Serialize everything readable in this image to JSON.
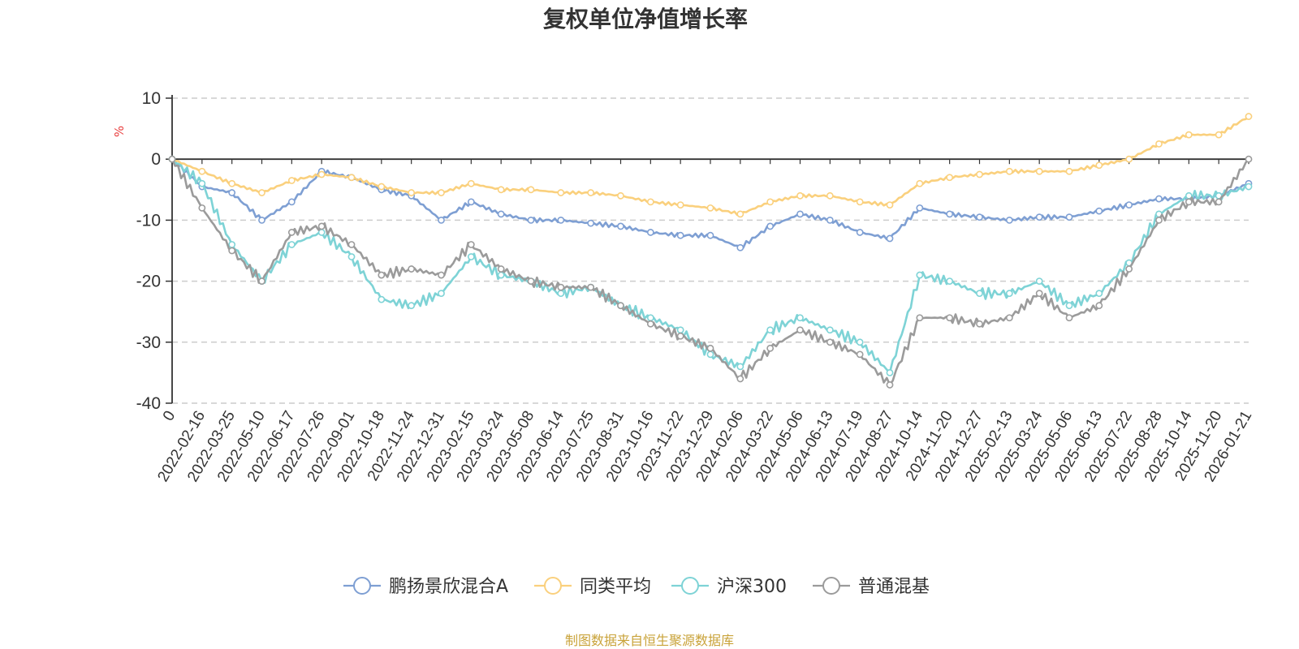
{
  "chart_data": {
    "type": "line",
    "title": "复权单位净值增长率",
    "ylabel": "%",
    "xlabel": "",
    "ylim": [
      -40,
      10
    ],
    "yticks": [
      10,
      0,
      -10,
      -20,
      -30,
      -40
    ],
    "grid": true,
    "legend_position": "bottom",
    "categories": [
      "0",
      "2022-02-16",
      "2022-03-25",
      "2022-05-10",
      "2022-06-17",
      "2022-07-26",
      "2022-09-01",
      "2022-10-18",
      "2022-11-24",
      "2022-12-31",
      "2023-02-15",
      "2023-03-24",
      "2023-05-08",
      "2023-06-14",
      "2023-07-25",
      "2023-08-31",
      "2023-10-16",
      "2023-11-22",
      "2023-12-29",
      "2024-02-06",
      "2024-03-22",
      "2024-05-06",
      "2024-06-13",
      "2024-07-19",
      "2024-08-27",
      "2024-10-14",
      "2024-11-20",
      "2024-12-27",
      "2025-02-13",
      "2025-03-24",
      "2025-05-06",
      "2025-06-13",
      "2025-07-22",
      "2025-08-28",
      "2025-10-14",
      "2025-11-20",
      "2026-01-21"
    ],
    "series": [
      {
        "name": "鹏扬景欣混合A",
        "color": "#7e9fd3",
        "values": [
          0,
          -4.5,
          -5.5,
          -10,
          -7,
          -2,
          -3,
          -5,
          -6,
          -10,
          -7,
          -9,
          -10,
          -10,
          -10.5,
          -11,
          -12,
          -12.5,
          -12.5,
          -14.5,
          -11,
          -9,
          -10,
          -12,
          -13,
          -8,
          -9,
          -9.5,
          -10,
          -9.5,
          -9.5,
          -8.5,
          -7.5,
          -6.5,
          -6.5,
          -6,
          -4
        ]
      },
      {
        "name": "同类平均",
        "color": "#fad07d",
        "values": [
          0,
          -2,
          -4,
          -5.5,
          -3.5,
          -2.5,
          -3,
          -4.5,
          -5.5,
          -5.5,
          -4,
          -5,
          -5,
          -5.5,
          -5.5,
          -6,
          -7,
          -7.5,
          -8,
          -9,
          -7,
          -6,
          -6,
          -7,
          -7.5,
          -4,
          -3,
          -2.5,
          -2,
          -2,
          -2,
          -1,
          0,
          2.5,
          4,
          4,
          7
        ]
      },
      {
        "name": "沪深300",
        "color": "#7ed3d6",
        "values": [
          0,
          -4,
          -14,
          -20,
          -14,
          -12,
          -16,
          -23,
          -24,
          -22,
          -16,
          -19,
          -20,
          -22,
          -21,
          -24,
          -26,
          -28,
          -32,
          -34,
          -28,
          -26,
          -28,
          -30,
          -35,
          -19,
          -20,
          -22,
          -22,
          -20,
          -24,
          -22,
          -17,
          -9,
          -6,
          -6,
          -4.5
        ]
      },
      {
        "name": "普通混基",
        "color": "#9b9b9b",
        "values": [
          0,
          -8,
          -15,
          -20,
          -12,
          -11,
          -14,
          -19,
          -18,
          -19,
          -14,
          -18,
          -20,
          -21,
          -21,
          -24,
          -27,
          -29,
          -31,
          -36,
          -31,
          -28,
          -30,
          -32,
          -37,
          -26,
          -26,
          -27,
          -26,
          -22,
          -26,
          -24,
          -18,
          -10,
          -7,
          -7,
          0
        ]
      }
    ]
  },
  "source_note": "制图数据来自恒生聚源数据库"
}
